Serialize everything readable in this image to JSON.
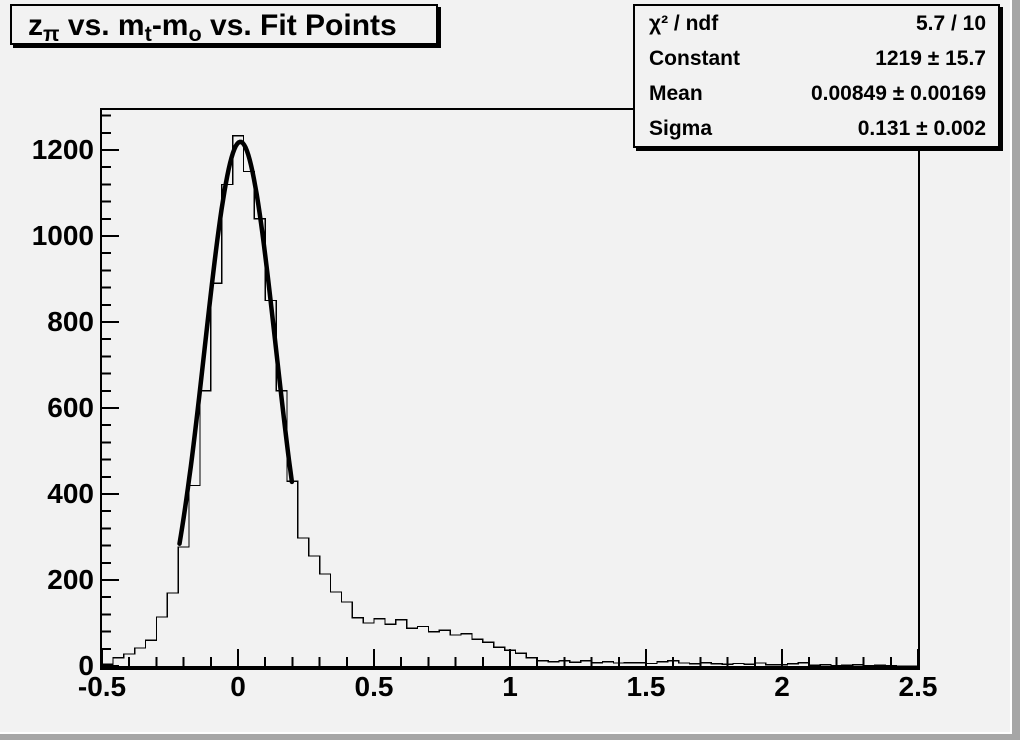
{
  "title": {
    "parts": [
      "z",
      "π",
      " vs. m",
      "t",
      "-m",
      "o",
      " vs. Fit Points"
    ],
    "plain": "z_π vs. m_t-m_o vs. Fit Points"
  },
  "stats_box": {
    "rows": [
      {
        "label": "χ² / ndf",
        "value": "5.7 / 10"
      },
      {
        "label": "Constant",
        "value": "1219 ± 15.7"
      },
      {
        "label": "Mean",
        "value": "0.00849 ± 0.00169"
      },
      {
        "label": "Sigma",
        "value": "0.131 ± 0.002"
      }
    ]
  },
  "chart_data": {
    "type": "bar",
    "subtype": "histogram-with-gaussian-fit",
    "title": "z_π vs. m_t-m_o vs. Fit Points",
    "xlabel": "",
    "ylabel": "",
    "xlim": [
      -0.5,
      2.5
    ],
    "ylim": [
      0,
      1293
    ],
    "grid": false,
    "legend_position": "stats-box-top-right",
    "bin_start": -0.5,
    "bin_width": 0.04,
    "bin_values": [
      4,
      19,
      28,
      42,
      60,
      114,
      170,
      277,
      420,
      640,
      890,
      1120,
      1233,
      1150,
      1040,
      850,
      640,
      430,
      298,
      256,
      214,
      172,
      149,
      112,
      100,
      110,
      97,
      108,
      88,
      92,
      80,
      83,
      72,
      75,
      62,
      55,
      44,
      37,
      30,
      19,
      12,
      10,
      12,
      9,
      12,
      8,
      10,
      7,
      8,
      8,
      6,
      10,
      12,
      7,
      5,
      8,
      5,
      4,
      6,
      4,
      7,
      3,
      3,
      5,
      8,
      2,
      3,
      1,
      2,
      3,
      1,
      2,
      1,
      0,
      0
    ],
    "fit": {
      "model": "gaussian",
      "constant": 1219,
      "mean": 0.00849,
      "sigma": 0.131,
      "chi2_ndf": "5.7 / 10",
      "draw_range": [
        -0.215,
        0.198
      ]
    },
    "x_ticks": {
      "major": [
        -0.5,
        0,
        0.5,
        1,
        1.5,
        2,
        2.5
      ],
      "labels": [
        "-0.5",
        "0",
        "0.5",
        "1",
        "1.5",
        "2",
        "2.5"
      ],
      "minor_step": 0.1
    },
    "y_ticks": {
      "major": [
        0,
        200,
        400,
        600,
        800,
        1000,
        1200
      ],
      "labels": [
        "0",
        "200",
        "400",
        "600",
        "800",
        "1000",
        "1200"
      ],
      "minor_step": 40
    }
  },
  "colors": {
    "canvas_bg": "#f2f2f2",
    "bevel_dark": "#a6a6a6",
    "line": "#000000"
  }
}
